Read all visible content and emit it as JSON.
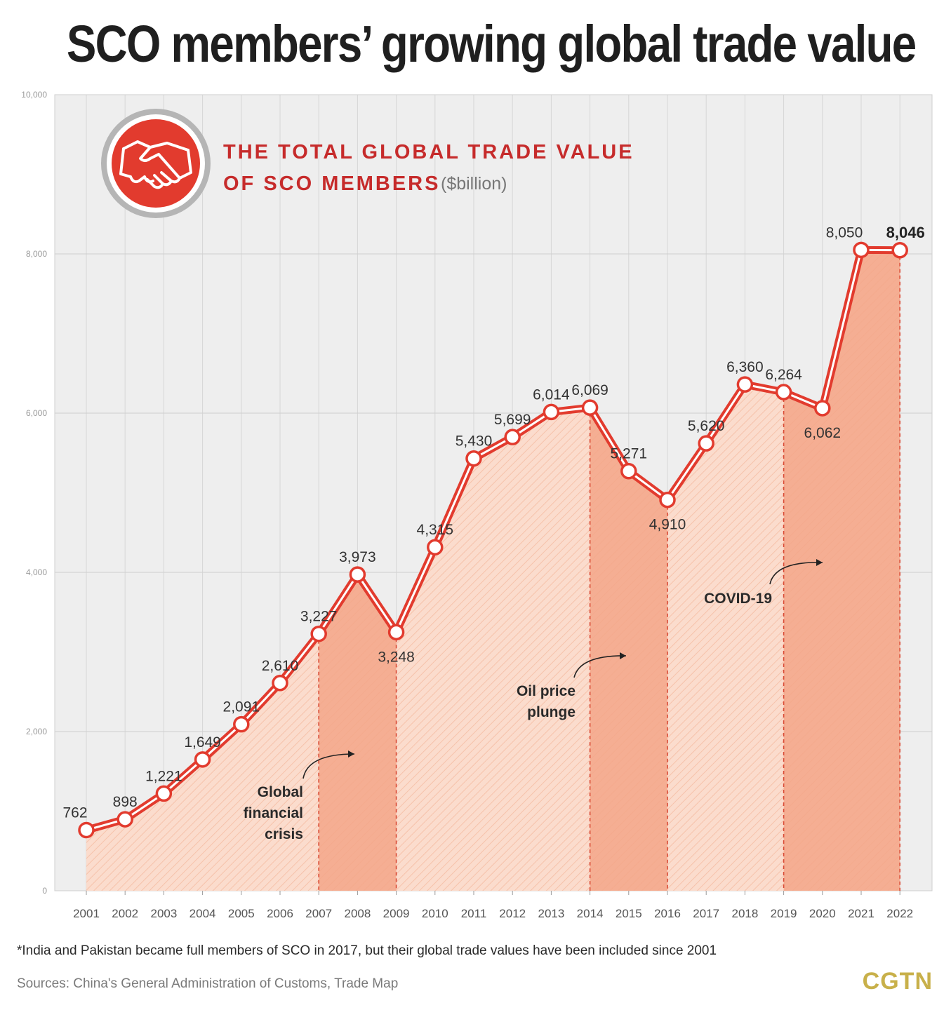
{
  "title": "SCO members’ growing global trade value",
  "footnote": "*India and Pakistan became full members of SCO in 2017, but their global trade values have been included since 2001",
  "sources": "Sources: China's General Administration of Customs, Trade Map",
  "brand": "CGTN",
  "colors": {
    "line": "#e23b2e",
    "fill": "#fbd6c6",
    "band": "#f3a688",
    "bg": "#eeeeee",
    "title_red": "#c62b2b"
  },
  "icon": "handshake-icon",
  "chart_data": {
    "type": "line",
    "subtitle_line1": "THE TOTAL GLOBAL TRADE VALUE",
    "subtitle_line2": "OF SCO MEMBERS",
    "unit": "($billion)",
    "x": [
      "2001",
      "2002",
      "2003",
      "2004",
      "2005",
      "2006",
      "2007",
      "2008",
      "2009",
      "2010",
      "2011",
      "2012",
      "2013",
      "2014",
      "2015",
      "2016",
      "2017",
      "2018",
      "2019",
      "2020",
      "2021",
      "2022"
    ],
    "values": [
      762,
      898,
      1221,
      1649,
      2091,
      2610,
      3227,
      3973,
      3248,
      4315,
      5430,
      5699,
      6014,
      6069,
      5271,
      4910,
      5620,
      6360,
      6264,
      6062,
      8050,
      8046
    ],
    "labels": [
      "762",
      "898",
      "1,221",
      "1,649",
      "2,091",
      "2,610",
      "3,227",
      "3,973",
      "3,248",
      "4,315",
      "5,430",
      "5,699",
      "6,014",
      "6,069",
      "5,271",
      "4,910",
      "5,620",
      "6,360",
      "6,264",
      "6,062",
      "8,050",
      "8,046"
    ],
    "label_below": [
      8,
      15,
      19
    ],
    "label_bold": [
      21
    ],
    "yticks": [
      0,
      2000,
      4000,
      6000,
      8000,
      10000
    ],
    "ytick_labels": [
      "0",
      "2,000",
      "4,000",
      "6,000",
      "8,000",
      "10,000"
    ],
    "ylim": [
      0,
      10000
    ],
    "grid": true,
    "events": [
      {
        "name": "global-financial-crisis",
        "text": [
          "Global",
          "financial",
          "crisis"
        ],
        "from": "2007",
        "to": "2009"
      },
      {
        "name": "oil-price-plunge",
        "text": [
          "Oil price",
          "plunge"
        ],
        "from": "2014",
        "to": "2016"
      },
      {
        "name": "covid-19",
        "text": [
          "COVID-19"
        ],
        "from": "2019",
        "to": "2022"
      }
    ]
  }
}
